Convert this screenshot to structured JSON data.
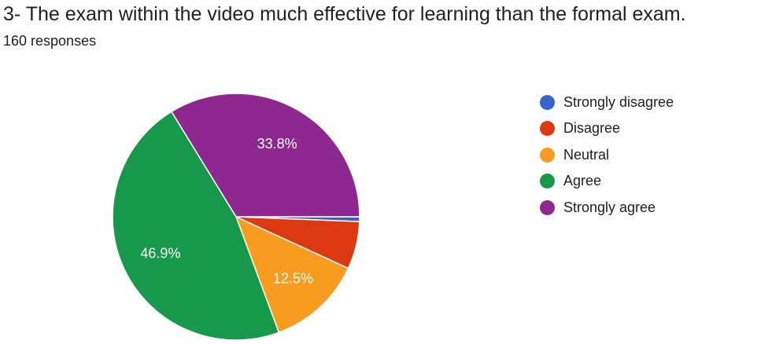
{
  "title": "3- The exam within the video much effective for learning than the formal exam.",
  "subtitle": "160 responses",
  "chart_data": {
    "type": "pie",
    "title": "3- The exam within the video much effective for learning than the formal exam.",
    "categories": [
      "Strongly disagree",
      "Disagree",
      "Neutral",
      "Agree",
      "Strongly agree"
    ],
    "values": [
      1,
      10,
      20,
      75,
      54
    ],
    "percent_labels": [
      "",
      "",
      "12.5%",
      "46.9%",
      "33.8%"
    ],
    "colors": [
      "#3366cc",
      "#dc3912",
      "#ff9900",
      "#109618",
      "#990099"
    ],
    "legend_position": "right",
    "start_angle": "3 o'clock, clockwise"
  }
}
